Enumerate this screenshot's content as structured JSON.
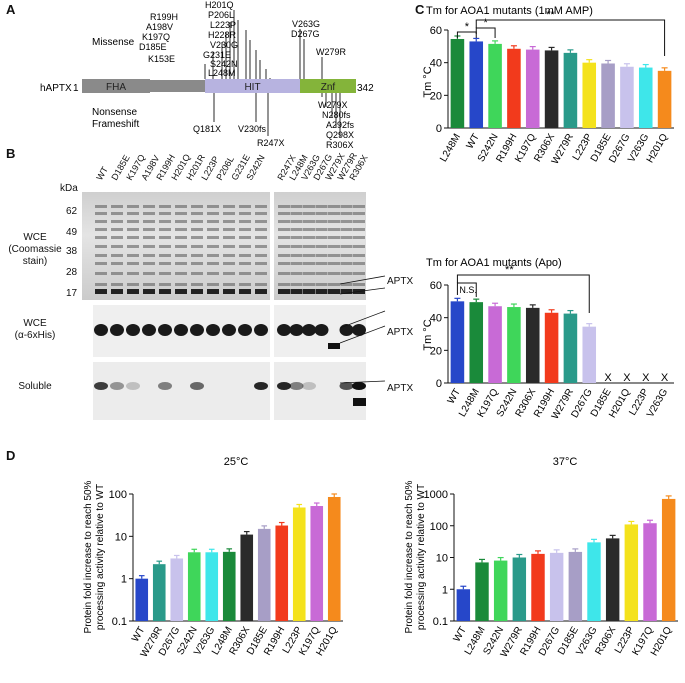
{
  "panels": {
    "A": "A",
    "B": "B",
    "C": "C",
    "D": "D"
  },
  "panelA": {
    "protein": "hAPTX",
    "start": "1",
    "end": "342",
    "domains": [
      "FHA",
      "HIT",
      "Znf"
    ],
    "missense_label": "Missense",
    "nonsense_label": "Nonsense\nFrameshift",
    "missense": [
      "K153E",
      "D185E",
      "K197Q",
      "A198V",
      "R199H",
      "H201Q",
      "P206L",
      "L223P",
      "H228R",
      "V230G",
      "G231E",
      "S242N",
      "L248M",
      "V263G",
      "D267G",
      "W279R"
    ],
    "nonsense": [
      "Q181X",
      "V230fs",
      "R247X",
      "W279X",
      "N280fs",
      "A292fs",
      "Q298X",
      "R306X"
    ]
  },
  "panelB": {
    "kda_label": "kDa",
    "markers": [
      "62",
      "49",
      "38",
      "28",
      "17"
    ],
    "lanes_left": [
      "WT",
      "D185E",
      "K197Q",
      "A198V",
      "R199H",
      "H201Q",
      "H201R",
      "L223P",
      "P206L",
      "G231E",
      "S242N"
    ],
    "lanes_right": [
      "R247X",
      "L248M",
      "V263G",
      "D267G",
      "W279X",
      "W279R",
      "R306X"
    ],
    "row_labels": [
      "WCE\n(Coomassie\nstain)",
      "WCE\n(α-6xHis)",
      "Soluble"
    ],
    "band_label": "APTX"
  },
  "chart_data": [
    {
      "type": "bar",
      "title": "Tm for AOA1 mutants (1mM AMP)",
      "ylabel": "Tm °C",
      "ylim": [
        0,
        60
      ],
      "yticks": [
        0,
        20,
        40,
        60
      ],
      "categories": [
        "L248M",
        "WT",
        "S242N",
        "R199H",
        "K197Q",
        "R306X",
        "W279R",
        "L223P",
        "D185E",
        "D267G",
        "V263G",
        "H201Q"
      ],
      "values": [
        54.5,
        53.0,
        51.5,
        48.5,
        48.0,
        47.5,
        46.0,
        40.0,
        39.5,
        37.5,
        37.0,
        35.0
      ],
      "colors": [
        "#1a8a3a",
        "#2647c9",
        "#3fd65a",
        "#f23a1c",
        "#c86ad6",
        "#2a2a2a",
        "#2a9a8a",
        "#f4e21c",
        "#a79ec6",
        "#c8c2ec",
        "#3ee6ea",
        "#f58a1c"
      ],
      "sig": [
        "*",
        "*",
        "**"
      ]
    },
    {
      "type": "bar",
      "title": "Tm for AOA1 mutants (Apo)",
      "ylabel": "Tm °C",
      "ylim": [
        0,
        60
      ],
      "yticks": [
        0,
        20,
        40,
        60
      ],
      "categories": [
        "WT",
        "L248M",
        "K197Q",
        "S242N",
        "R306X",
        "R199H",
        "W279R",
        "D267G",
        "D185E",
        "H201Q",
        "L223P",
        "V263G"
      ],
      "values": [
        50.0,
        49.5,
        47.0,
        46.5,
        46.0,
        43.0,
        42.5,
        34.5,
        null,
        null,
        null,
        null
      ],
      "colors": [
        "#2647c9",
        "#1a8a3a",
        "#c86ad6",
        "#3fd65a",
        "#2a2a2a",
        "#f23a1c",
        "#2a9a8a",
        "#c8c2ec",
        "#a79ec6",
        "#f58a1c",
        "#f4e21c",
        "#3ee6ea"
      ],
      "missing_mark": "X",
      "sig": [
        "N.S.",
        "**"
      ]
    },
    {
      "type": "bar",
      "title": "25°C",
      "ylabel": "Protein fold increase to reach 50% processing activity relative to WT",
      "yscale": "log",
      "ylim": [
        0.1,
        100
      ],
      "yticks": [
        "0.1",
        "1",
        "10",
        "100"
      ],
      "categories": [
        "WT",
        "W279R",
        "D267G",
        "S242N",
        "V263G",
        "L248M",
        "R306X",
        "D185E",
        "R199H",
        "L223P",
        "K197Q",
        "H201Q"
      ],
      "values": [
        1.0,
        2.2,
        3.0,
        4.2,
        4.2,
        4.3,
        11,
        15,
        18,
        48,
        52,
        85
      ],
      "colors": [
        "#2647c9",
        "#2a9a8a",
        "#c8c2ec",
        "#3fd65a",
        "#3ee6ea",
        "#1a8a3a",
        "#2a2a2a",
        "#a79ec6",
        "#f23a1c",
        "#f4e21c",
        "#c86ad6",
        "#f58a1c"
      ]
    },
    {
      "type": "bar",
      "title": "37°C",
      "ylabel": "Protein fold increase to reach 50% processing activity relative to WT",
      "yscale": "log",
      "ylim": [
        0.1,
        1000
      ],
      "yticks": [
        "0.1",
        "1",
        "10",
        "100",
        "1000"
      ],
      "categories": [
        "WT",
        "L248M",
        "S242N",
        "W279R",
        "R199H",
        "D267G",
        "D185E",
        "V263G",
        "R306X",
        "L223P",
        "K197Q",
        "H201Q"
      ],
      "values": [
        1.0,
        7,
        8,
        10,
        13,
        14,
        15,
        30,
        40,
        110,
        120,
        700
      ],
      "colors": [
        "#2647c9",
        "#1a8a3a",
        "#3fd65a",
        "#2a9a8a",
        "#f23a1c",
        "#c8c2ec",
        "#a79ec6",
        "#3ee6ea",
        "#2a2a2a",
        "#f4e21c",
        "#c86ad6",
        "#f58a1c"
      ]
    }
  ]
}
